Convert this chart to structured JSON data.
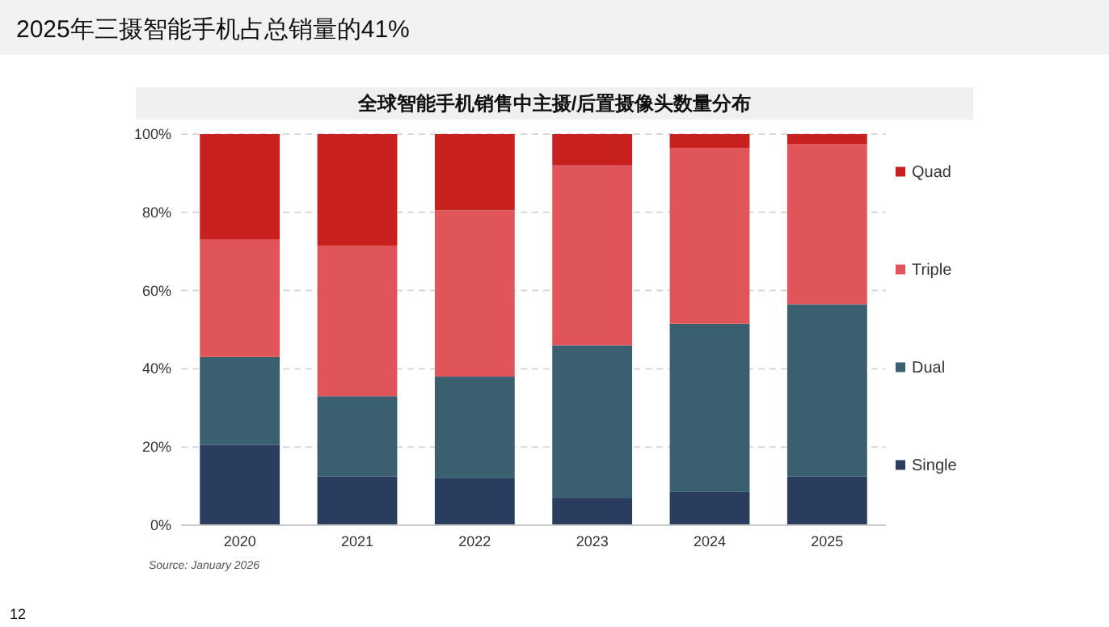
{
  "chart_data": {
    "type": "bar",
    "title": "2025年三摄智能手机占总销量的41%",
    "subtitle": "全球智能手机销售中主摄/后置摄像头数量分布",
    "categories": [
      "2020",
      "2021",
      "2022",
      "2023",
      "2024",
      "2025"
    ],
    "stacked": true,
    "series": [
      {
        "name": "Single",
        "color": "#2b3d5e",
        "values": [
          20.5,
          12.5,
          12,
          7,
          8.5,
          12.5
        ]
      },
      {
        "name": "Dual",
        "color": "#3a5f6f",
        "values": [
          22.5,
          20.5,
          26,
          39,
          43,
          44
        ]
      },
      {
        "name": "Triple",
        "color": "#e0555a",
        "values": [
          30,
          38.5,
          42.5,
          46,
          45,
          41
        ]
      },
      {
        "name": "Quad",
        "color": "#c8201e",
        "values": [
          27,
          28.5,
          19.5,
          8,
          3.5,
          2.5
        ]
      }
    ],
    "ylim": [
      0,
      100
    ],
    "yticks": [
      {
        "value": 0,
        "label": "0%"
      },
      {
        "value": 20,
        "label": "20%"
      },
      {
        "value": 40,
        "label": "40%"
      },
      {
        "value": 60,
        "label": "60%"
      },
      {
        "value": 80,
        "label": "80%"
      },
      {
        "value": 100,
        "label": "100%"
      }
    ],
    "grid": "y",
    "legend": "right",
    "annotations": [
      "Source: January 2026",
      "12"
    ]
  }
}
